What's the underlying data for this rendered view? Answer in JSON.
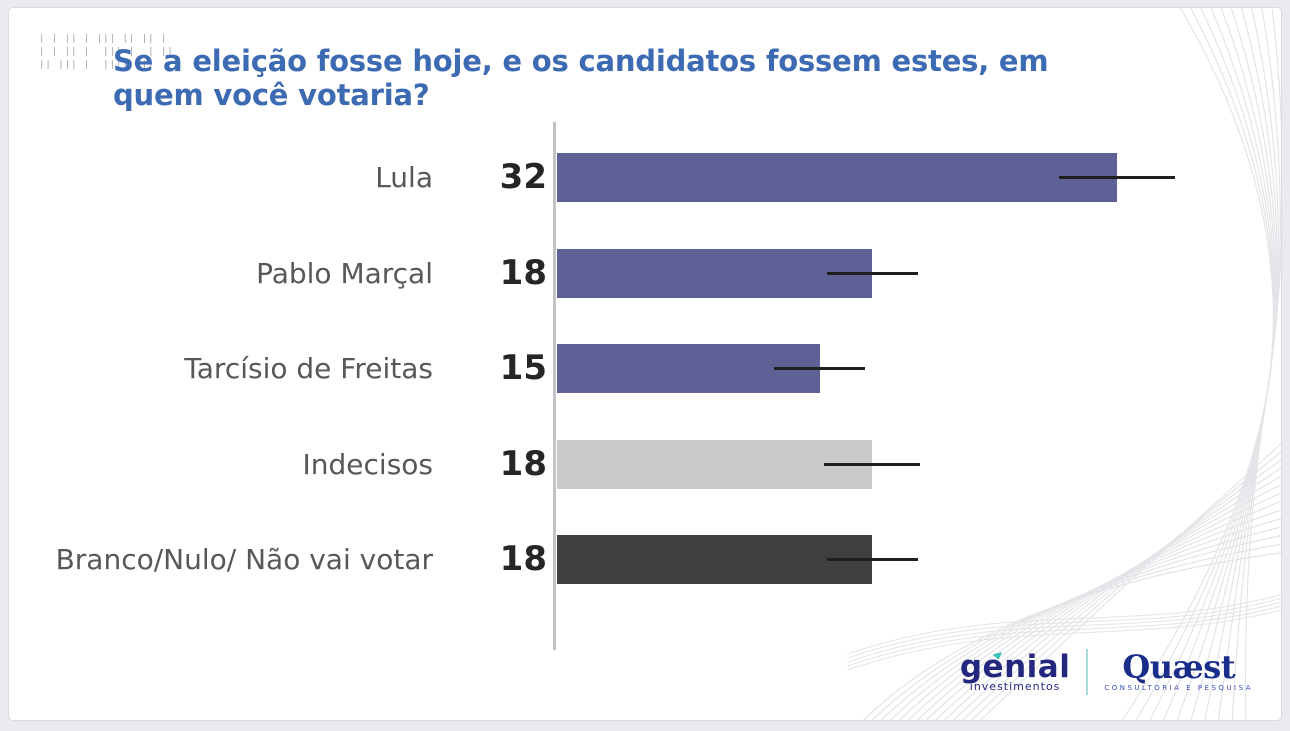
{
  "title": {
    "text": "Se a eleição fosse hoje, e os candidatos fossem estes, em quem você votaria?",
    "color": "#3d6bb3"
  },
  "header_icon": "dashes-pattern-icon",
  "dashes_rows": [
    "| | || | ||| || || |",
    "| | || |  ||| |  | ||",
    "|| ||| |  ||||  ||"
  ],
  "chart_data": {
    "type": "bar",
    "orientation": "horizontal",
    "title": "Se a eleição fosse hoje, e os candidatos fossem estes, em quem você votaria?",
    "categories": [
      "Lula",
      "Pablo Marçal",
      "Tarcísio de Freitas",
      "Indecisos",
      "Branco/Nulo/ Não vai votar"
    ],
    "values": [
      32,
      18,
      15,
      18,
      18
    ],
    "value_labels": [
      "32",
      "18",
      "15",
      "18",
      "18"
    ],
    "errors": [
      3.3,
      2.6,
      2.6,
      2.75,
      2.6
    ],
    "bar_colors": [
      "#5e6096",
      "#5e6096",
      "#5e6096",
      "#c9c9c9",
      "#3f3f3f"
    ],
    "error_bar_color": "#1f1f1f",
    "xlabel": "",
    "ylabel": "",
    "xlim": [
      0,
      42
    ],
    "grid": false,
    "legend": false
  },
  "footer": {
    "genial": {
      "name": "genial",
      "sub": "investimentos",
      "color": "#23277e",
      "accent_color": "#35c4b5"
    },
    "quaest": {
      "name": "Quæst",
      "sub": "CONSULTORIA E PESQUISA",
      "color": "#1b2d8a"
    }
  },
  "decorations": {
    "right_waves_icon": "wave-lines-icon",
    "bottom_waves_icon": "wave-lines-icon"
  }
}
